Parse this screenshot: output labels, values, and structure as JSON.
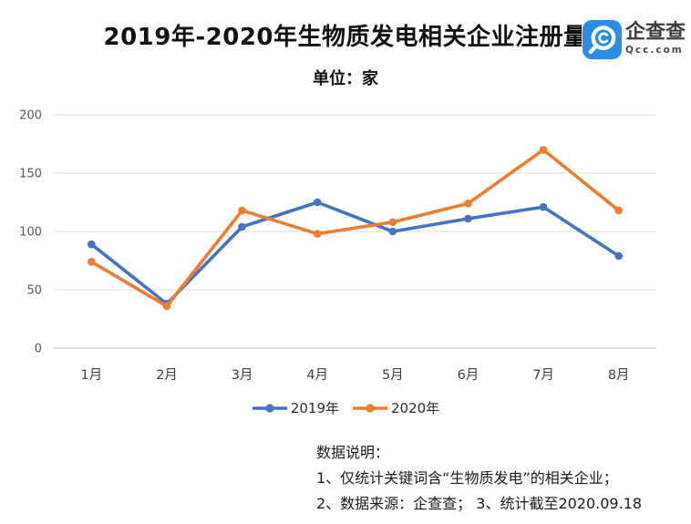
{
  "header": {
    "title": "2019年-2020年生物质发电相关企业注册量",
    "unit_label": "单位：家",
    "logo": {
      "name": "企查查",
      "domain": "Qcc.com",
      "color": "#2B8DE3"
    }
  },
  "chart_data": {
    "type": "line",
    "title": "2019年-2020年生物质发电相关企业注册量",
    "unit": "家",
    "categories": [
      "1月",
      "2月",
      "3月",
      "4月",
      "5月",
      "6月",
      "7月",
      "8月"
    ],
    "series": [
      {
        "name": "2019年",
        "color": "#4472C4",
        "values": [
          89,
          38,
          104,
          125,
          100,
          111,
          121,
          79
        ]
      },
      {
        "name": "2020年",
        "color": "#ED7D31",
        "values": [
          74,
          36,
          118,
          98,
          108,
          124,
          170,
          118
        ]
      }
    ],
    "ylim": [
      0,
      200
    ],
    "yticks": [
      0,
      50,
      100,
      150,
      200
    ],
    "grid": true,
    "legend_position": "bottom",
    "grid_color": "#DCDCDC",
    "zero_line_color": "#BFBFBF",
    "ytick_color": "#595959",
    "xtick_color": "#404040"
  },
  "footer": {
    "heading": "数据说明：",
    "notes": [
      "1、仅统计关键词含“生物质发电”的相关企业；",
      "2、数据来源：企查查；  3、统计截至2020.09.18"
    ]
  }
}
